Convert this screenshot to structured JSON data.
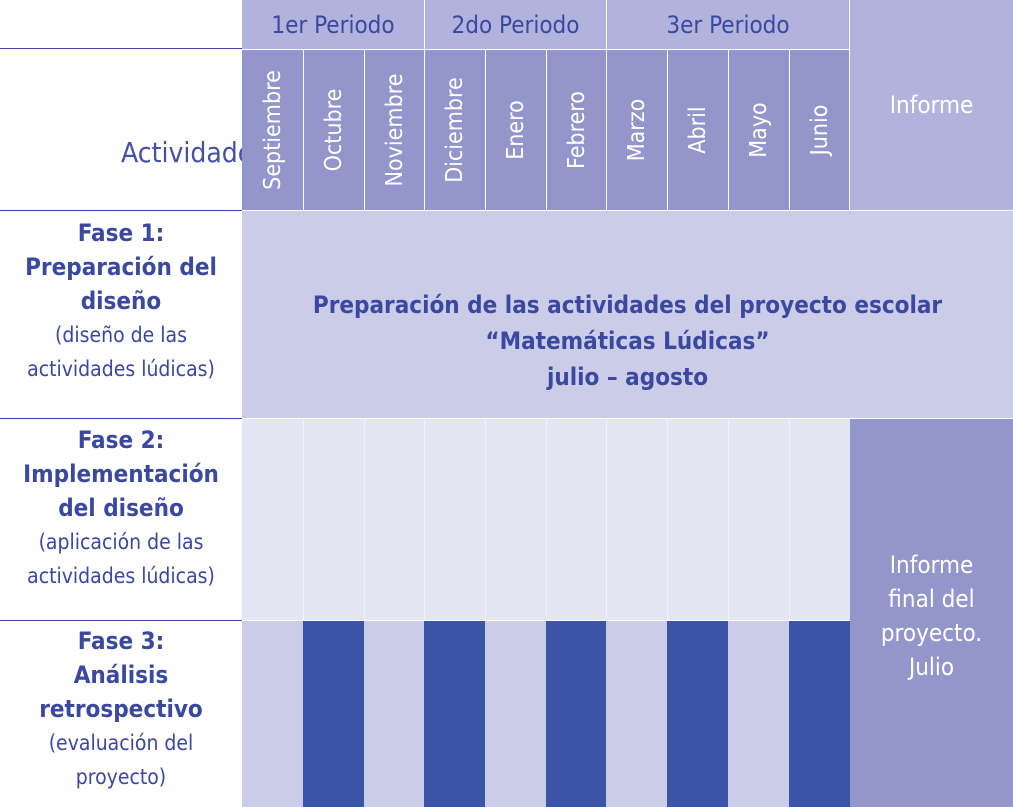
{
  "header": {
    "activities_label": "Actividades",
    "periods": [
      "1er Periodo",
      "2do Periodo",
      "3er Periodo"
    ],
    "months": [
      "Septiembre",
      "Octubre",
      "Noviembre",
      "Diciembre",
      "Enero",
      "Febrero",
      "Marzo",
      "Abril",
      "Mayo",
      "Junio"
    ],
    "report_label": "Informe"
  },
  "phases": [
    {
      "title_1": "Fase 1:",
      "title_2": "Preparación del",
      "title_3": "diseño",
      "note_1": "(diseño de las",
      "note_2": "actividades lúdicas)"
    },
    {
      "title_1": "Fase 2:",
      "title_2": "Implementación",
      "title_3": "del diseño",
      "note_1": "(aplicación de las",
      "note_2": "actividades lúdicas)"
    },
    {
      "title_1": "Fase 3:",
      "title_2": "Análisis",
      "title_3": "retrospectivo",
      "note_1": "(evaluación del",
      "note_2": "proyecto)"
    }
  ],
  "phase1_band": {
    "line_1": "Preparación de las actividades del proyecto escolar",
    "line_2": "“Matemáticas Lúdicas”",
    "line_3": "julio – agosto"
  },
  "final_report": {
    "line_1": "Informe",
    "line_2": "final del",
    "line_3": "proyecto.",
    "line_4": "Julio"
  },
  "colors": {
    "period_header": "#b1b3dc",
    "month_header": "#9396cb",
    "phase1_band": "#cbcce8",
    "phase2_band": "#e5e6f3",
    "phase3_light": "#cbcce8",
    "phase3_dark": "#3a55a5",
    "report_column": "#9396cb",
    "text": "#3a48a0"
  }
}
